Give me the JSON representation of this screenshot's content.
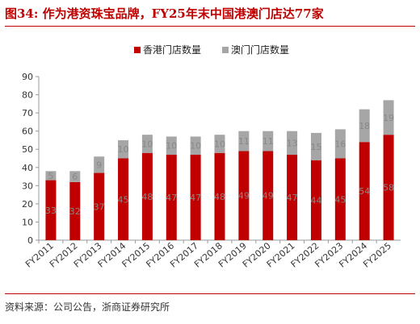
{
  "figure": {
    "title": "图34:  作为港资珠宝品牌，FY25年末中国港澳门店达77家",
    "source": "资料来源：公司公告，浙商证券研究所"
  },
  "chart_data": {
    "type": "bar",
    "stacked": true,
    "categories": [
      "FY2011",
      "FY2012",
      "FY2013",
      "FY2014",
      "FY2015",
      "FY2016",
      "FY2017",
      "FY2018",
      "FY2019",
      "FY2020",
      "FY2021",
      "FY2022",
      "FY2023",
      "FY2024",
      "FY2025"
    ],
    "series": [
      {
        "name": "香港门店数量",
        "color": "#c00000",
        "values": [
          33,
          32,
          37,
          45,
          48,
          47,
          47,
          48,
          49,
          49,
          47,
          44,
          45,
          54,
          58
        ]
      },
      {
        "name": "澳门门店数量",
        "color": "#a6a6a6",
        "values": [
          5,
          6,
          9,
          10,
          10,
          10,
          10,
          10,
          11,
          11,
          13,
          15,
          16,
          18,
          19
        ]
      }
    ],
    "ylim": [
      0,
      90
    ],
    "yticks": [
      0,
      10,
      20,
      30,
      40,
      50,
      60,
      70,
      80,
      90
    ],
    "legend_position": "top-center",
    "grid": false
  }
}
